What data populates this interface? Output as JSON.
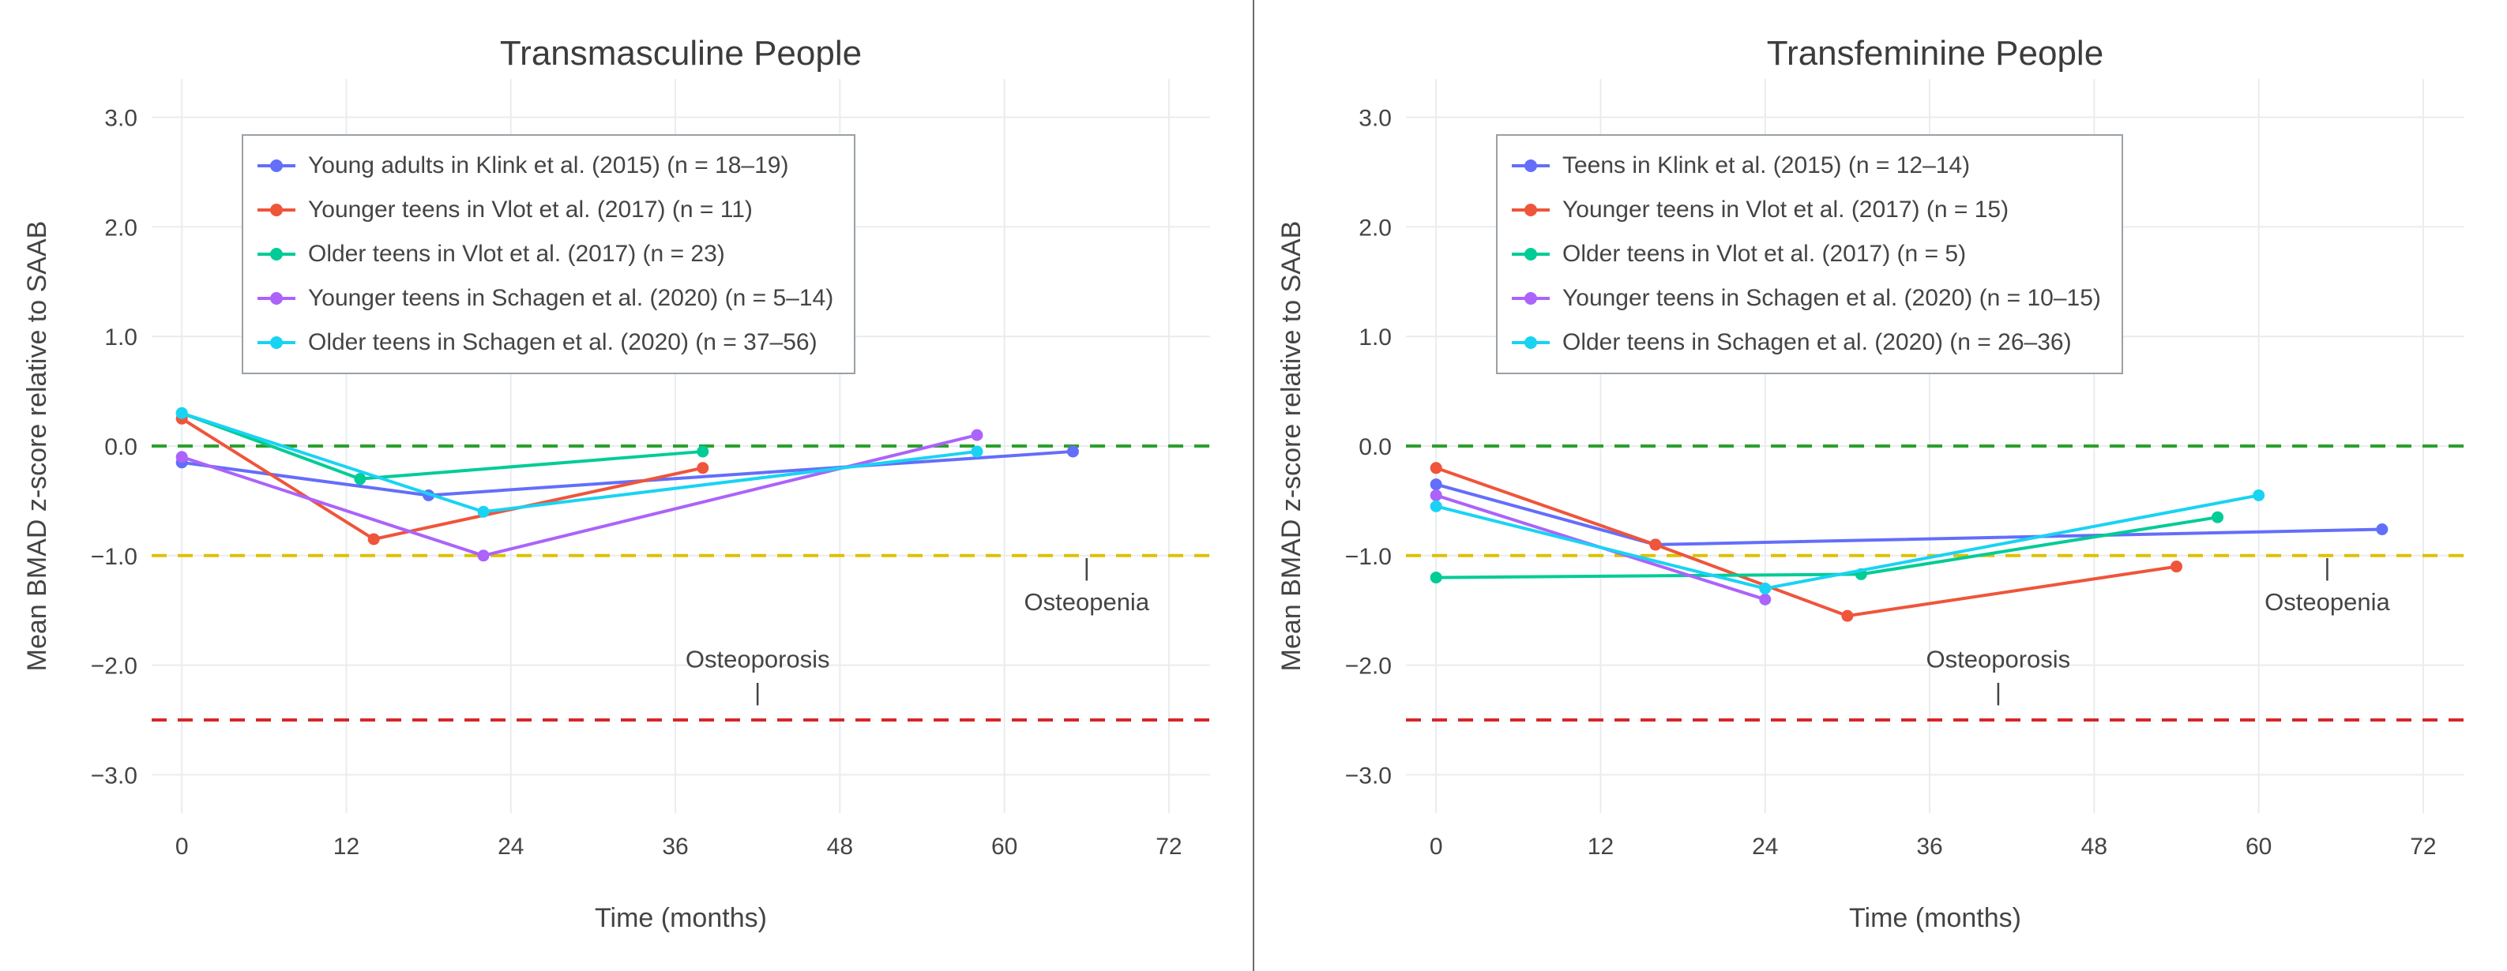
{
  "page": {
    "background": "#ffffff",
    "divider_color": "#6b6b6b"
  },
  "chart_data": [
    {
      "type": "line",
      "title": "Transmasculine People",
      "xlabel": "Time (months)",
      "ylabel": "Mean BMAD z-score relative to SAAB",
      "xlim": [
        -2.2,
        75
      ],
      "ylim": [
        -3.35,
        3.35
      ],
      "grid": true,
      "legend_position": "top-left",
      "xtick_values": [
        0,
        12,
        24,
        36,
        48,
        60,
        72
      ],
      "xtick_labels": [
        "0",
        "12",
        "24",
        "36",
        "48",
        "60",
        "72"
      ],
      "ytick_values": [
        3,
        2,
        1,
        0,
        -1,
        -2,
        -3
      ],
      "ytick_labels": [
        "3.0",
        "2.0",
        "1.0",
        "0.0",
        "−1.0",
        "−2.0",
        "−3.0"
      ],
      "series": [
        {
          "name": "Young adults in Klink et al. (2015) (n = 18–19)",
          "color": "#636efa",
          "x": [
            0,
            18,
            65
          ],
          "y": [
            -0.15,
            -0.45,
            -0.05
          ]
        },
        {
          "name": "Younger teens in Vlot et al. (2017) (n = 11)",
          "color": "#ef553b",
          "x": [
            0,
            14,
            38
          ],
          "y": [
            0.25,
            -0.85,
            -0.2
          ]
        },
        {
          "name": "Older teens in Vlot et al. (2017) (n = 23)",
          "color": "#00cc96",
          "x": [
            0,
            13,
            38
          ],
          "y": [
            0.3,
            -0.3,
            -0.05
          ]
        },
        {
          "name": "Younger teens in Schagen et al. (2020) (n = 5–14)",
          "color": "#ab63fa",
          "x": [
            0,
            22,
            58
          ],
          "y": [
            -0.1,
            -1.0,
            0.1
          ]
        },
        {
          "name": "Older teens in Schagen et al. (2020) (n = 37–56)",
          "color": "#19d3f3",
          "x": [
            0,
            22,
            58
          ],
          "y": [
            0.3,
            -0.6,
            -0.05
          ]
        }
      ],
      "reference_lines": [
        {
          "y": 0.0,
          "color": "#2ca02c"
        },
        {
          "y": -1.0,
          "color": "#ddc100"
        },
        {
          "y": -2.5,
          "color": "#d62728"
        }
      ],
      "annotations": [
        {
          "text": "Osteoporosis",
          "x": 42,
          "y": -2.02
        },
        {
          "text": "|",
          "x": 42,
          "y": -2.32
        },
        {
          "text": "Osteopenia",
          "x": 66,
          "y": -1.5
        },
        {
          "text": "|",
          "x": 66,
          "y": -1.18
        }
      ]
    },
    {
      "type": "line",
      "title": "Transfeminine People",
      "xlabel": "Time (months)",
      "ylabel": "Mean BMAD z-score relative to SAAB",
      "xlim": [
        -2.2,
        75
      ],
      "ylim": [
        -3.35,
        3.35
      ],
      "grid": true,
      "legend_position": "top-left",
      "xtick_values": [
        0,
        12,
        24,
        36,
        48,
        60,
        72
      ],
      "xtick_labels": [
        "0",
        "12",
        "24",
        "36",
        "48",
        "60",
        "72"
      ],
      "ytick_values": [
        3,
        2,
        1,
        0,
        -1,
        -2,
        -3
      ],
      "ytick_labels": [
        "3.0",
        "2.0",
        "1.0",
        "0.0",
        "−1.0",
        "−2.0",
        "−3.0"
      ],
      "series": [
        {
          "name": "Teens in Klink et al. (2015) (n = 12–14)",
          "color": "#636efa",
          "x": [
            0,
            16,
            69
          ],
          "y": [
            -0.35,
            -0.9,
            -0.76
          ]
        },
        {
          "name": "Younger teens in Vlot et al. (2017) (n = 15)",
          "color": "#ef553b",
          "x": [
            0,
            16,
            30,
            54
          ],
          "y": [
            -0.2,
            -0.9,
            -1.55,
            -1.1
          ]
        },
        {
          "name": "Older teens in Vlot et al. (2017) (n = 5)",
          "color": "#00cc96",
          "x": [
            0,
            31,
            57
          ],
          "y": [
            -1.2,
            -1.17,
            -0.65
          ]
        },
        {
          "name": "Younger teens in Schagen et al. (2020) (n = 10–15)",
          "color": "#ab63fa",
          "x": [
            0,
            24
          ],
          "y": [
            -0.45,
            -1.4
          ]
        },
        {
          "name": "Older teens in Schagen et al. (2020) (n = 26–36)",
          "color": "#19d3f3",
          "x": [
            0,
            24,
            60
          ],
          "y": [
            -0.55,
            -1.3,
            -0.45
          ]
        }
      ],
      "reference_lines": [
        {
          "y": 0.0,
          "color": "#2ca02c"
        },
        {
          "y": -1.0,
          "color": "#ddc100"
        },
        {
          "y": -2.5,
          "color": "#d62728"
        }
      ],
      "annotations": [
        {
          "text": "Osteoporosis",
          "x": 41,
          "y": -2.02
        },
        {
          "text": "|",
          "x": 41,
          "y": -2.32
        },
        {
          "text": "Osteopenia",
          "x": 65,
          "y": -1.5
        },
        {
          "text": "|",
          "x": 65,
          "y": -1.18
        }
      ]
    }
  ]
}
